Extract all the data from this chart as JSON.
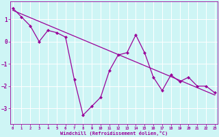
{
  "xlabel": "Windchill (Refroidissement éolien,°C)",
  "x_values": [
    0,
    1,
    2,
    3,
    4,
    5,
    6,
    7,
    8,
    9,
    10,
    11,
    12,
    13,
    14,
    15,
    16,
    17,
    18,
    19,
    20,
    21,
    22,
    23
  ],
  "y_values": [
    1.5,
    1.1,
    0.7,
    0.0,
    0.5,
    0.4,
    0.2,
    -1.7,
    -3.3,
    -2.9,
    -2.5,
    -1.3,
    -0.6,
    -0.5,
    0.3,
    -0.5,
    -1.6,
    -2.2,
    -1.5,
    -1.8,
    -1.6,
    -2.0,
    -2.0,
    -2.3
  ],
  "trend_x": [
    0,
    23
  ],
  "trend_y": [
    1.4,
    -2.4
  ],
  "line_color": "#990099",
  "marker_color": "#990099",
  "bg_color": "#cef5f5",
  "grid_color": "#aadddd",
  "axis_color": "#990099",
  "tick_label_color": "#990099",
  "xlabel_color": "#990099",
  "ylim": [
    -3.7,
    1.8
  ],
  "xlim": [
    -0.3,
    23.3
  ],
  "yticks": [
    -3,
    -2,
    -1,
    0,
    1
  ],
  "xticks": [
    0,
    1,
    2,
    3,
    4,
    5,
    6,
    7,
    8,
    9,
    10,
    11,
    12,
    13,
    14,
    15,
    16,
    17,
    18,
    19,
    20,
    21,
    22,
    23
  ]
}
